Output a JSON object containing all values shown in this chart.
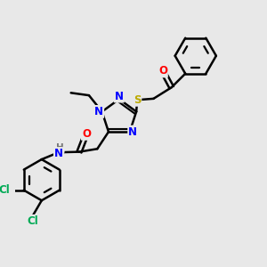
{
  "bg_color": "#e8e8e8",
  "bond_color": "#000000",
  "bond_width": 1.8,
  "atom_colors": {
    "N": "#0000ff",
    "O": "#ff0000",
    "S": "#bbaa00",
    "Cl": "#00aa55",
    "H": "#777777",
    "C": "#000000"
  },
  "font_size_atom": 8.5
}
